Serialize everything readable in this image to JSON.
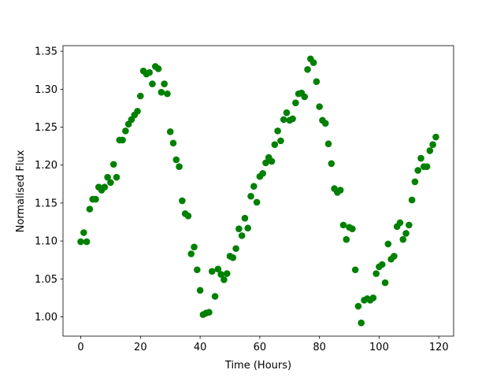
{
  "chart_data": {
    "type": "scatter",
    "xlabel": "Time (Hours)",
    "ylabel": "Normalised Flux",
    "x": [
      0,
      1,
      2,
      3,
      4,
      5,
      6,
      7,
      8,
      9,
      10,
      11,
      12,
      13,
      14,
      15,
      16,
      17,
      18,
      19,
      20,
      21,
      22,
      23,
      24,
      25,
      26,
      27,
      28,
      29,
      30,
      31,
      32,
      33,
      34,
      35,
      36,
      37,
      38,
      39,
      40,
      41,
      42,
      43,
      44,
      45,
      46,
      47,
      48,
      49,
      50,
      51,
      52,
      53,
      54,
      55,
      56,
      57,
      58,
      59,
      60,
      61,
      62,
      63,
      64,
      65,
      66,
      67,
      68,
      69,
      70,
      71,
      72,
      73,
      74,
      75,
      76,
      77,
      78,
      79,
      80,
      81,
      82,
      83,
      84,
      85,
      86,
      87,
      88,
      89,
      90,
      91,
      92,
      93,
      94,
      95,
      96,
      97,
      98,
      99,
      100,
      101,
      102,
      103,
      104,
      105,
      106,
      107,
      108,
      109,
      110,
      111,
      112,
      113,
      114,
      115,
      116,
      117,
      118,
      119
    ],
    "series": [
      {
        "color": "#008000",
        "values": [
          1.099,
          1.111,
          1.099,
          1.142,
          1.155,
          1.155,
          1.171,
          1.167,
          1.171,
          1.184,
          1.177,
          1.201,
          1.184,
          1.233,
          1.233,
          1.245,
          1.254,
          1.26,
          1.266,
          1.271,
          1.291,
          1.324,
          1.32,
          1.322,
          1.307,
          1.33,
          1.327,
          1.296,
          1.307,
          1.294,
          1.244,
          1.229,
          1.207,
          1.198,
          1.153,
          1.136,
          1.133,
          1.083,
          1.092,
          1.062,
          1.035,
          1.003,
          1.005,
          1.006,
          1.06,
          1.027,
          1.063,
          1.056,
          1.049,
          1.057,
          1.08,
          1.078,
          1.09,
          1.116,
          1.107,
          1.13,
          1.117,
          1.159,
          1.172,
          1.151,
          1.185,
          1.189,
          1.203,
          1.21,
          1.205,
          1.227,
          1.245,
          1.232,
          1.26,
          1.269,
          1.259,
          1.261,
          1.282,
          1.294,
          1.295,
          1.29,
          1.326,
          1.34,
          1.335,
          1.31,
          1.277,
          1.259,
          1.255,
          1.228,
          1.202,
          1.169,
          1.164,
          1.167,
          1.121,
          1.102,
          1.118,
          1.116,
          1.062,
          1.014,
          0.992,
          1.022,
          1.024,
          1.022,
          1.025,
          1.057,
          1.066,
          1.069,
          1.045,
          1.096,
          1.076,
          1.08,
          1.119,
          1.124,
          1.102,
          1.11,
          1.121,
          1.154,
          1.178,
          1.193,
          1.209,
          1.198,
          1.198,
          1.219,
          1.227,
          1.237
        ]
      }
    ],
    "xlim": [
      -5.95,
      124.95
    ],
    "xticks": [
      0,
      20,
      40,
      60,
      80,
      100,
      120
    ],
    "ylim": [
      0.9746,
      1.3574
    ],
    "yticks": [
      {
        "value": 1.0,
        "label": "1.00"
      },
      1.05,
      {
        "value": 1.1,
        "label": "1.10"
      },
      1.15,
      {
        "value": 1.2,
        "label": "1.20"
      },
      1.25,
      {
        "value": 1.3,
        "label": "1.30"
      },
      1.35
    ]
  }
}
